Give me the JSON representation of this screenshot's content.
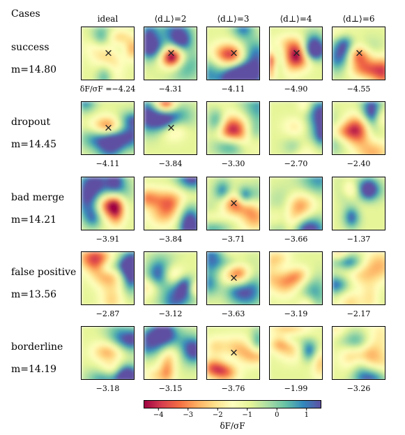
{
  "cases_header": "Cases",
  "columns": [
    "ideal",
    "⟨d⊥⟩=2",
    "⟨d⊥⟩=3",
    "⟨d⊥⟩=4",
    "⟨d⊥⟩=6"
  ],
  "rows": [
    {
      "case": "success",
      "mass": "m=14.80",
      "first_value_prefix": "δF/σF =",
      "values": [
        "−4.24",
        "−4.31",
        "−4.11",
        "−4.90",
        "−4.55"
      ],
      "markers": [
        true,
        true,
        true,
        true,
        true
      ]
    },
    {
      "case": "dropout",
      "mass": "m=14.45",
      "first_value_prefix": "",
      "values": [
        "−4.11",
        "−3.84",
        "−3.30",
        "−2.70",
        "−2.40"
      ],
      "markers": [
        true,
        true,
        false,
        false,
        false
      ]
    },
    {
      "case": "bad merge",
      "mass": "m=14.21",
      "first_value_prefix": "",
      "values": [
        "−3.91",
        "−3.84",
        "−3.71",
        "−3.66",
        "−1.37"
      ],
      "markers": [
        false,
        false,
        true,
        false,
        false
      ]
    },
    {
      "case": "false positive",
      "mass": "m=13.56",
      "first_value_prefix": "",
      "values": [
        "−2.87",
        "−3.12",
        "−3.63",
        "−3.19",
        "−2.17"
      ],
      "markers": [
        false,
        false,
        true,
        false,
        false
      ]
    },
    {
      "case": "borderline",
      "mass": "m=14.19",
      "first_value_prefix": "",
      "values": [
        "−3.18",
        "−3.15",
        "−3.76",
        "−1.99",
        "−3.26"
      ],
      "markers": [
        false,
        false,
        true,
        false,
        false
      ]
    }
  ],
  "colorbar": {
    "label": "δF/σF",
    "ticks": [
      "−4",
      "−3",
      "−2",
      "−1",
      "0",
      "1"
    ],
    "tick_values": [
      -4,
      -3,
      -2,
      -1,
      0,
      1
    ],
    "range": [
      -4.5,
      1.5
    ],
    "colormap": "Spectral",
    "stops": [
      "#9e0142",
      "#d53e4f",
      "#f46d43",
      "#fdae61",
      "#fee08b",
      "#ffffbf",
      "#e6f598",
      "#abdda4",
      "#66c2a5",
      "#3288bd",
      "#5e4fa2"
    ]
  },
  "chart_data": {
    "type": "heatmap",
    "title": "",
    "row_labels": [
      "success",
      "dropout",
      "bad merge",
      "false positive",
      "borderline"
    ],
    "column_labels": [
      "ideal",
      "⟨d⊥⟩=2",
      "⟨d⊥⟩=3",
      "⟨d⊥⟩=4",
      "⟨d⊥⟩=6"
    ],
    "masses": [
      14.8,
      14.45,
      14.21,
      13.56,
      14.19
    ],
    "values": [
      [
        -4.24,
        -4.31,
        -4.11,
        -4.9,
        -4.55
      ],
      [
        -4.11,
        -3.84,
        -3.3,
        -2.7,
        -2.4
      ],
      [
        -3.91,
        -3.84,
        -3.71,
        -3.66,
        -1.37
      ],
      [
        -2.87,
        -3.12,
        -3.63,
        -3.19,
        -2.17
      ],
      [
        -3.18,
        -3.15,
        -3.76,
        -1.99,
        -3.26
      ]
    ],
    "colorbar_label": "δF/σF",
    "colorbar_range": [
      -4.5,
      1.5
    ]
  }
}
